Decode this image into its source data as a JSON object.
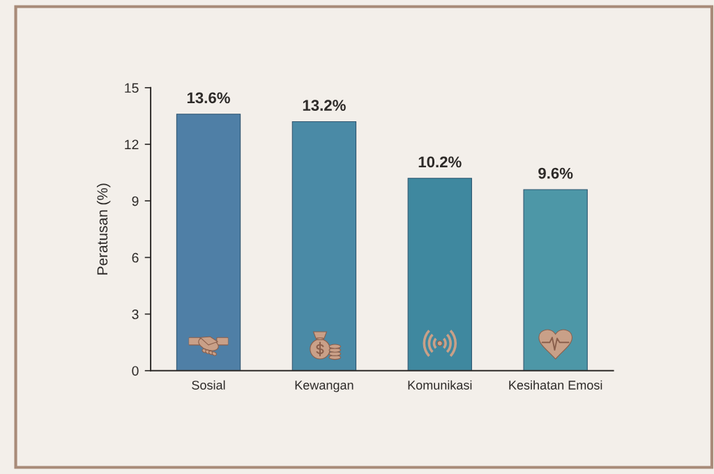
{
  "chart_data": {
    "type": "bar",
    "ylabel": "Peratusan (%)",
    "categories": [
      "Sosial",
      "Kewangan",
      "Komunikasi",
      "Kesihatan Emosi"
    ],
    "values": [
      13.6,
      13.2,
      10.2,
      9.6
    ],
    "value_labels": [
      "13.6%",
      "13.2%",
      "10.2%",
      "9.6%"
    ],
    "colors": [
      "#4f7fa6",
      "#4a8aa6",
      "#3f889f",
      "#4d97a7"
    ],
    "ylim": [
      0,
      15
    ],
    "yticks": [
      0,
      3,
      6,
      9,
      12,
      15
    ],
    "grid": false
  }
}
